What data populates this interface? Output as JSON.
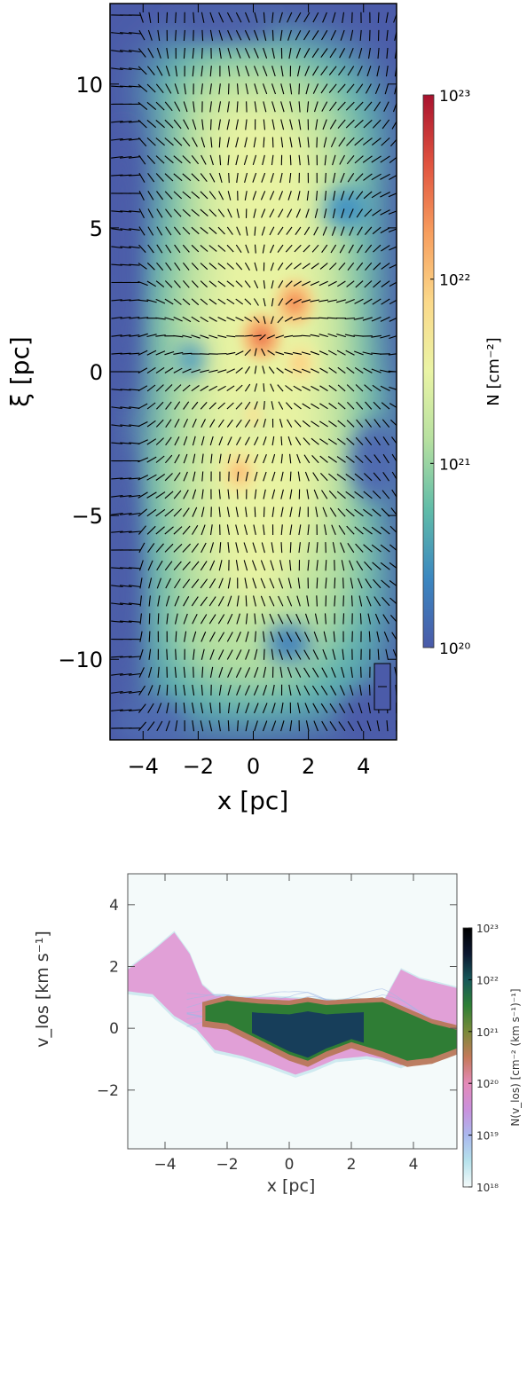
{
  "chart_data": [
    {
      "type": "heatmap",
      "panel": "column density map",
      "xlabel": "x [pc]",
      "ylabel": "ξ [pc]",
      "xlim": [
        -5.2,
        5.2
      ],
      "ylim": [
        -12.8,
        12.8
      ],
      "xticks": [
        -4,
        -2,
        0,
        2,
        4
      ],
      "xtick_labels": [
        "−4",
        "−2",
        "0",
        "2",
        "4"
      ],
      "yticks": [
        10,
        5,
        0,
        -5,
        -10
      ],
      "ytick_labels": [
        "10",
        "5",
        "0",
        "−5",
        "−10"
      ],
      "colorbar": {
        "label": "N [cm⁻²]",
        "scale": "log",
        "range": [
          1e+20,
          1e+23
        ],
        "tick_values": [
          1e+23,
          1e+22,
          1e+21,
          1e+20
        ],
        "tick_labels": [
          "10²³",
          "10²²",
          "10²¹",
          "10²⁰"
        ],
        "colors": [
          "#4a5aa8",
          "#3b87c0",
          "#60bca8",
          "#b6e0a0",
          "#eaf4a5",
          "#fbd98a",
          "#f79e5e",
          "#e0533f",
          "#a8122e"
        ]
      },
      "vector_overlay": true,
      "density_peaks": [
        {
          "x": 0.3,
          "y": 1.2,
          "log_N": 22.4
        },
        {
          "x": 1.5,
          "y": 2.4,
          "log_N": 22.3
        },
        {
          "x": 1.7,
          "y": 0.3,
          "log_N": 21.9
        },
        {
          "x": -0.5,
          "y": -3.5,
          "log_N": 22.0
        },
        {
          "x": 0.0,
          "y": -1.5,
          "log_N": 21.7
        }
      ],
      "background_log_N": 20.0
    },
    {
      "type": "heatmap",
      "panel": "position-velocity diagram",
      "xlabel": "x [pc]",
      "ylabel": "v_los [km s⁻¹]",
      "xlim": [
        -5.2,
        5.4
      ],
      "ylim": [
        -3.9,
        5.0
      ],
      "xticks": [
        -4,
        -2,
        0,
        2,
        4
      ],
      "xtick_labels": [
        "−4",
        "−2",
        "0",
        "2",
        "4"
      ],
      "yticks": [
        4,
        2,
        0,
        -2
      ],
      "ytick_labels": [
        "4",
        "2",
        "0",
        "−2"
      ],
      "colorbar": {
        "label": "N(v_los) [cm⁻² (km s⁻¹)⁻¹]",
        "scale": "log",
        "range": [
          1e+18,
          1e+23
        ],
        "tick_values": [
          1e+23,
          1e+22,
          1e+21,
          1e+20,
          1e+19,
          1e+18
        ],
        "tick_labels": [
          "10²³",
          "10²²",
          "10²¹",
          "10²⁰",
          "10¹⁹",
          "10¹⁸"
        ],
        "colors": [
          "#f4fafa",
          "#b6e2ec",
          "#aab8ee",
          "#ca90dc",
          "#e48ab8",
          "#c5795a",
          "#7a8a3a",
          "#2e7f35",
          "#17585a",
          "#0c1830",
          "#000000"
        ]
      },
      "band_upper_x": [
        -5.2,
        -4.4,
        -3.7,
        -3.2,
        -2.8,
        -2.4,
        -1.5,
        -0.5,
        0.5,
        1.5,
        2.2,
        3.0,
        3.6,
        4.2,
        5.4
      ],
      "band_upper_v": [
        1.9,
        2.5,
        3.1,
        2.4,
        1.4,
        1.05,
        1.0,
        1.0,
        0.95,
        0.9,
        0.95,
        0.8,
        1.9,
        1.6,
        1.3
      ],
      "band_lower_x": [
        -5.2,
        -4.4,
        -3.7,
        -3.0,
        -2.4,
        -1.5,
        -0.6,
        0.2,
        0.8,
        1.5,
        2.5,
        3.0,
        3.6,
        4.4,
        5.4
      ],
      "band_lower_v": [
        1.2,
        1.1,
        0.4,
        0.0,
        -0.7,
        -0.9,
        -1.2,
        -1.5,
        -1.3,
        -1.0,
        -0.9,
        -1.0,
        -1.2,
        -0.8,
        -0.6
      ],
      "dense_core_x": [
        -2.8,
        -2.0,
        -1.0,
        0.0,
        0.6,
        1.2,
        2.0,
        3.0,
        3.8,
        4.6,
        5.4
      ],
      "dense_core_v_top": [
        0.75,
        0.95,
        0.85,
        0.8,
        0.9,
        0.8,
        0.85,
        0.9,
        0.55,
        0.2,
        0.0
      ],
      "dense_core_v_bot": [
        0.2,
        0.1,
        -0.4,
        -0.9,
        -1.1,
        -0.8,
        -0.5,
        -0.8,
        -1.1,
        -1.0,
        -0.7
      ]
    }
  ]
}
